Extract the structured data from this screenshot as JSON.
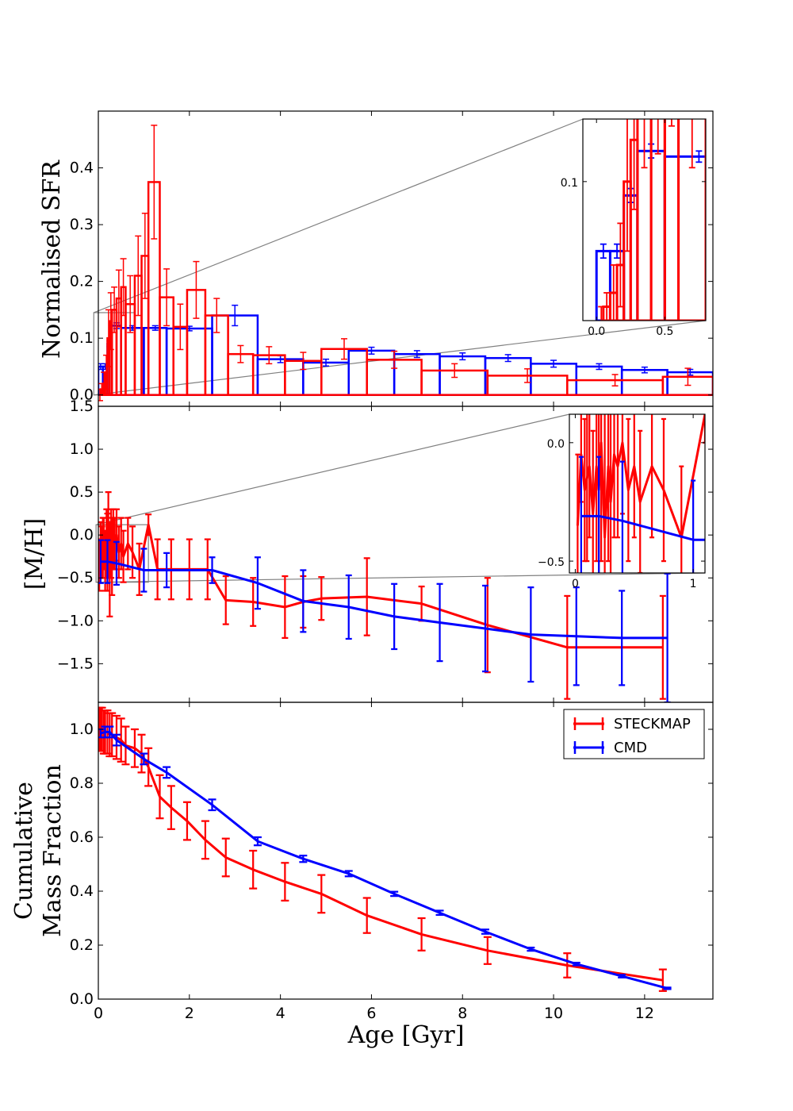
{
  "colors": {
    "steckmap": "#ff0000",
    "cmd": "#0000ff",
    "zoom_lines": "#808080"
  },
  "legend": {
    "entries": [
      "STECKMAP",
      "CMD"
    ],
    "placement": "top-right of bottom panel"
  },
  "chart_data": [
    {
      "id": "sfr",
      "type": "bar",
      "ylabel": "Normalised SFR",
      "xlim": [
        0,
        13.5
      ],
      "ylim": [
        -0.02,
        0.5
      ],
      "yticks": [
        0.0,
        0.1,
        0.2,
        0.3,
        0.4
      ],
      "ytick_labels": [
        "0.0",
        "0.1",
        "0.2",
        "0.3",
        "0.4"
      ],
      "series": [
        {
          "name": "CMD",
          "bins": [
            {
              "x0": 0.0,
              "x1": 0.1,
              "v": 0.05,
              "e": 0.005
            },
            {
              "x0": 0.1,
              "x1": 0.2,
              "v": 0.05,
              "e": 0.005
            },
            {
              "x0": 0.2,
              "x1": 0.3,
              "v": 0.09,
              "e": 0.005
            },
            {
              "x0": 0.3,
              "x1": 0.5,
              "v": 0.122,
              "e": 0.005
            },
            {
              "x0": 0.5,
              "x1": 1.0,
              "v": 0.118,
              "e": 0.004
            },
            {
              "x0": 1.0,
              "x1": 1.5,
              "v": 0.118,
              "e": 0.004
            },
            {
              "x0": 1.5,
              "x1": 2.5,
              "v": 0.117,
              "e": 0.004
            },
            {
              "x0": 2.5,
              "x1": 3.5,
              "v": 0.14,
              "e": 0.018
            },
            {
              "x0": 3.5,
              "x1": 4.5,
              "v": 0.063,
              "e": 0.006
            },
            {
              "x0": 4.5,
              "x1": 5.5,
              "v": 0.057,
              "e": 0.006
            },
            {
              "x0": 5.5,
              "x1": 6.5,
              "v": 0.078,
              "e": 0.006
            },
            {
              "x0": 6.5,
              "x1": 7.5,
              "v": 0.072,
              "e": 0.006
            },
            {
              "x0": 7.5,
              "x1": 8.5,
              "v": 0.068,
              "e": 0.006
            },
            {
              "x0": 8.5,
              "x1": 9.5,
              "v": 0.065,
              "e": 0.006
            },
            {
              "x0": 9.5,
              "x1": 10.5,
              "v": 0.055,
              "e": 0.006
            },
            {
              "x0": 10.5,
              "x1": 11.5,
              "v": 0.05,
              "e": 0.005
            },
            {
              "x0": 11.5,
              "x1": 12.5,
              "v": 0.044,
              "e": 0.005
            },
            {
              "x0": 12.5,
              "x1": 13.5,
              "v": 0.04,
              "e": 0.005
            }
          ]
        },
        {
          "name": "STECKMAP",
          "bins": [
            {
              "x0": 0.02,
              "x1": 0.05,
              "v": 0.0,
              "e": 0.01
            },
            {
              "x0": 0.05,
              "x1": 0.1,
              "v": 0.01,
              "e": 0.01
            },
            {
              "x0": 0.1,
              "x1": 0.15,
              "v": 0.02,
              "e": 0.02
            },
            {
              "x0": 0.15,
              "x1": 0.2,
              "v": 0.04,
              "e": 0.03
            },
            {
              "x0": 0.2,
              "x1": 0.25,
              "v": 0.1,
              "e": 0.05
            },
            {
              "x0": 0.25,
              "x1": 0.3,
              "v": 0.13,
              "e": 0.05
            },
            {
              "x0": 0.3,
              "x1": 0.4,
              "v": 0.15,
              "e": 0.04
            },
            {
              "x0": 0.4,
              "x1": 0.5,
              "v": 0.17,
              "e": 0.05
            },
            {
              "x0": 0.5,
              "x1": 0.6,
              "v": 0.19,
              "e": 0.05
            },
            {
              "x0": 0.6,
              "x1": 0.8,
              "v": 0.16,
              "e": 0.05
            },
            {
              "x0": 0.8,
              "x1": 0.95,
              "v": 0.21,
              "e": 0.07
            },
            {
              "x0": 0.95,
              "x1": 1.1,
              "v": 0.245,
              "e": 0.075
            },
            {
              "x0": 1.1,
              "x1": 1.35,
              "v": 0.375,
              "e": 0.1
            },
            {
              "x0": 1.35,
              "x1": 1.65,
              "v": 0.172,
              "e": 0.05
            },
            {
              "x0": 1.65,
              "x1": 1.95,
              "v": 0.12,
              "e": 0.04
            },
            {
              "x0": 1.95,
              "x1": 2.35,
              "v": 0.185,
              "e": 0.05
            },
            {
              "x0": 2.35,
              "x1": 2.85,
              "v": 0.14,
              "e": 0.03
            },
            {
              "x0": 2.85,
              "x1": 3.4,
              "v": 0.072,
              "e": 0.015
            },
            {
              "x0": 3.4,
              "x1": 4.1,
              "v": 0.07,
              "e": 0.015
            },
            {
              "x0": 4.1,
              "x1": 4.9,
              "v": 0.06,
              "e": 0.015
            },
            {
              "x0": 4.9,
              "x1": 5.9,
              "v": 0.081,
              "e": 0.018
            },
            {
              "x0": 5.9,
              "x1": 7.1,
              "v": 0.062,
              "e": 0.015
            },
            {
              "x0": 7.1,
              "x1": 8.55,
              "v": 0.043,
              "e": 0.012
            },
            {
              "x0": 8.55,
              "x1": 10.3,
              "v": 0.034,
              "e": 0.012
            },
            {
              "x0": 10.3,
              "x1": 12.4,
              "v": 0.026,
              "e": 0.01
            },
            {
              "x0": 12.4,
              "x1": 13.5,
              "v": 0.032,
              "e": 0.015
            }
          ]
        }
      ],
      "inset": {
        "xlim": [
          -0.1,
          0.8
        ],
        "ylim": [
          0.0,
          0.145
        ],
        "xticks": [
          0.0,
          0.5
        ],
        "xtick_labels": [
          "0.0",
          "0.5"
        ],
        "yticks": [
          0.1
        ],
        "ytick_labels": [
          "0.1"
        ]
      }
    },
    {
      "id": "metallicity",
      "type": "line",
      "ylabel": "[M/H]",
      "xlim": [
        0,
        13.5
      ],
      "ylim": [
        -1.95,
        1.5
      ],
      "yticks": [
        1.5,
        1.0,
        0.5,
        0.0,
        -0.5,
        -1.0,
        -1.5
      ],
      "ytick_labels": [
        "1.5",
        "1.0",
        "0.5",
        "0.0",
        "−0.5",
        "−1.0",
        "−1.5"
      ],
      "series": [
        {
          "name": "STECKMAP",
          "x": [
            0.02,
            0.05,
            0.08,
            0.1,
            0.12,
            0.15,
            0.18,
            0.2,
            0.22,
            0.25,
            0.28,
            0.3,
            0.33,
            0.36,
            0.4,
            0.45,
            0.5,
            0.55,
            0.65,
            0.75,
            0.9,
            1.1,
            1.3,
            1.6,
            2.0,
            2.4,
            2.8,
            3.4,
            4.1,
            4.5,
            4.9,
            5.9,
            7.1,
            8.55,
            10.3,
            12.4
          ],
          "y": [
            -0.35,
            -0.05,
            -0.2,
            -0.15,
            -0.1,
            -0.3,
            -0.1,
            -0.2,
            0.0,
            -0.4,
            -0.1,
            -0.25,
            -0.05,
            -0.1,
            0.0,
            -0.2,
            -0.1,
            -0.25,
            -0.1,
            -0.2,
            -0.4,
            0.12,
            -0.4,
            -0.4,
            -0.4,
            -0.4,
            -0.76,
            -0.78,
            -0.84,
            -0.78,
            -0.74,
            -0.72,
            -0.8,
            -1.05,
            -1.31,
            -1.31
          ],
          "err": [
            0.3,
            0.2,
            0.3,
            0.35,
            0.3,
            0.35,
            0.4,
            0.45,
            0.5,
            0.55,
            0.4,
            0.45,
            0.35,
            0.3,
            0.3,
            0.3,
            0.3,
            0.3,
            0.3,
            0.3,
            0.3,
            0.12,
            0.35,
            0.35,
            0.35,
            0.35,
            0.28,
            0.28,
            0.36,
            0.3,
            0.25,
            0.45,
            0.2,
            0.55,
            0.6,
            0.6
          ]
        },
        {
          "name": "CMD",
          "x": [
            0.05,
            0.2,
            0.4,
            1.0,
            1.5,
            2.5,
            3.5,
            4.5,
            5.5,
            6.5,
            7.5,
            8.5,
            9.5,
            10.5,
            11.5,
            12.5
          ],
          "y": [
            -0.31,
            -0.31,
            -0.33,
            -0.41,
            -0.41,
            -0.41,
            -0.56,
            -0.77,
            -0.84,
            -0.95,
            -1.02,
            -1.09,
            -1.16,
            -1.18,
            -1.2,
            -1.2
          ],
          "err": [
            0.25,
            0.25,
            0.25,
            0.25,
            0.2,
            0.15,
            0.3,
            0.36,
            0.37,
            0.38,
            0.45,
            0.5,
            0.55,
            0.57,
            0.55,
            0.75
          ]
        }
      ],
      "inset": {
        "xlim": [
          -0.05,
          1.1
        ],
        "ylim": [
          -0.55,
          0.12
        ],
        "xticks": [
          0,
          1
        ],
        "xtick_labels": [
          "0",
          "1"
        ],
        "yticks": [
          0.0,
          -0.5
        ],
        "ytick_labels": [
          "0.0",
          "−0.5"
        ]
      }
    },
    {
      "id": "cumulative",
      "type": "line",
      "ylabel": "Cumulative Mass Fraction",
      "ylabel_lines": [
        "Cumulative",
        "Mass Fraction"
      ],
      "xlabel": "Age [Gyr]",
      "xlim": [
        0,
        13.5
      ],
      "ylim": [
        0.0,
        1.1
      ],
      "xticks": [
        0,
        2,
        4,
        6,
        8,
        10,
        12
      ],
      "xtick_labels": [
        "0",
        "2",
        "4",
        "6",
        "8",
        "10",
        "12"
      ],
      "yticks": [
        0.0,
        0.2,
        0.4,
        0.6,
        0.8,
        1.0
      ],
      "ytick_labels": [
        "0.0",
        "0.2",
        "0.4",
        "0.6",
        "0.8",
        "1.0"
      ],
      "series": [
        {
          "name": "STECKMAP",
          "x": [
            0.02,
            0.05,
            0.08,
            0.12,
            0.15,
            0.2,
            0.25,
            0.3,
            0.4,
            0.5,
            0.6,
            0.8,
            0.95,
            1.1,
            1.35,
            1.6,
            1.95,
            2.35,
            2.8,
            3.4,
            4.1,
            4.9,
            5.9,
            7.1,
            8.55,
            10.3,
            12.4
          ],
          "y": [
            1.0,
            1.0,
            1.0,
            0.99,
            0.99,
            0.99,
            0.98,
            0.98,
            0.97,
            0.96,
            0.94,
            0.93,
            0.91,
            0.86,
            0.75,
            0.71,
            0.66,
            0.59,
            0.525,
            0.48,
            0.435,
            0.39,
            0.31,
            0.24,
            0.18,
            0.125,
            0.07
          ],
          "err": [
            0.08,
            0.08,
            0.08,
            0.08,
            0.08,
            0.08,
            0.08,
            0.08,
            0.08,
            0.08,
            0.07,
            0.07,
            0.07,
            0.07,
            0.08,
            0.08,
            0.07,
            0.07,
            0.07,
            0.07,
            0.07,
            0.07,
            0.065,
            0.06,
            0.05,
            0.045,
            0.04
          ]
        },
        {
          "name": "CMD",
          "x": [
            0.05,
            0.15,
            0.25,
            0.4,
            1.0,
            1.5,
            2.5,
            3.5,
            4.5,
            5.5,
            6.5,
            7.5,
            8.5,
            9.5,
            10.5,
            11.5,
            12.5
          ],
          "y": [
            0.985,
            0.99,
            0.99,
            0.96,
            0.89,
            0.84,
            0.72,
            0.585,
            0.52,
            0.465,
            0.39,
            0.32,
            0.25,
            0.185,
            0.13,
            0.085,
            0.04
          ],
          "err": [
            0.015,
            0.02,
            0.02,
            0.02,
            0.02,
            0.02,
            0.02,
            0.015,
            0.012,
            0.01,
            0.008,
            0.008,
            0.008,
            0.006,
            0.005,
            0.005,
            0.003
          ]
        }
      ]
    }
  ]
}
